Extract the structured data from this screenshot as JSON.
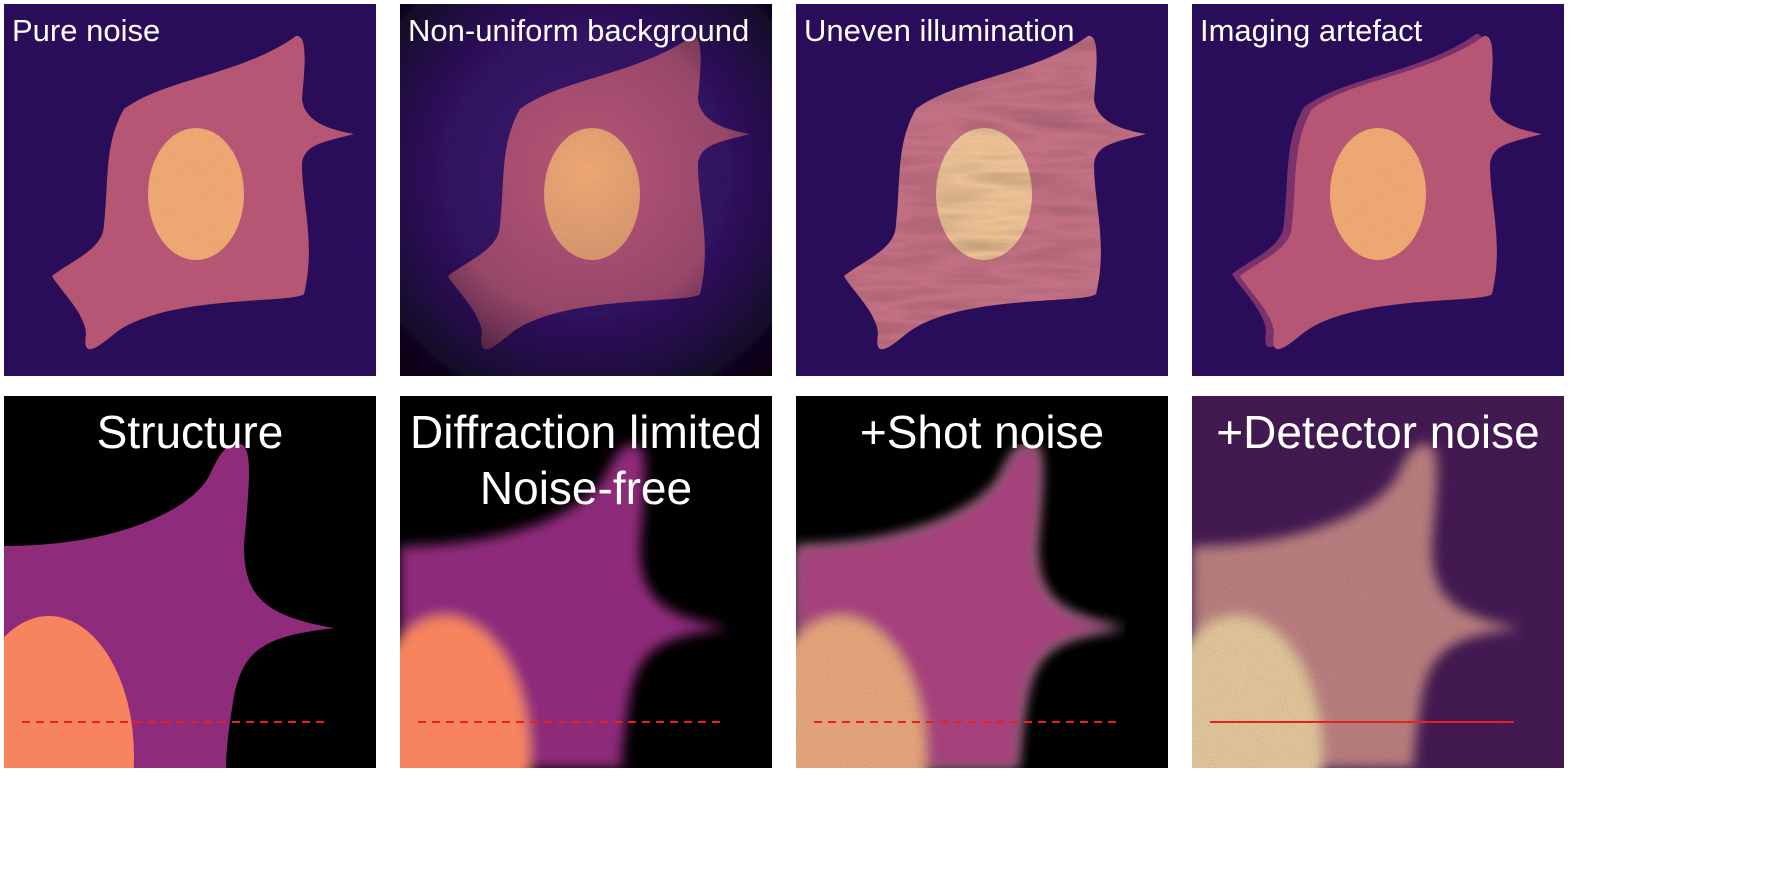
{
  "figure": {
    "top_row": [
      {
        "label": "Pure noise"
      },
      {
        "label": "Non-uniform background"
      },
      {
        "label": "Uneven illumination"
      },
      {
        "label": "Imaging artefact"
      }
    ],
    "bottom_row": [
      {
        "label_lines": [
          "Structure"
        ]
      },
      {
        "label_lines": [
          "Diffraction limited",
          "Noise-free"
        ]
      },
      {
        "label_lines": [
          "+Shot noise"
        ]
      },
      {
        "label_lines": [
          "+Detector noise"
        ]
      }
    ]
  },
  "colors": {
    "background": "#2e1160",
    "cytoplasm": "#c25c7c",
    "nucleus": "#fcb27a",
    "structure_cytoplasm": "#8e2b7a",
    "structure_nucleus": "#f7845f",
    "line_profile": "#e82020"
  }
}
